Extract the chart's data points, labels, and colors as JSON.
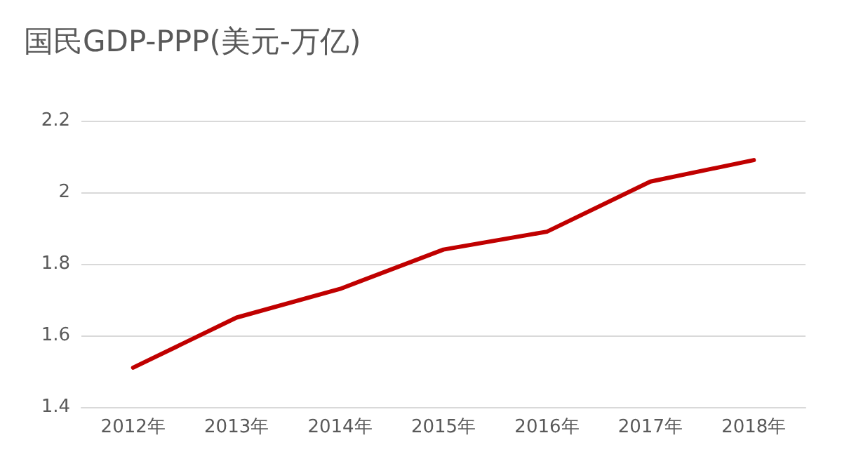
{
  "chart_data": {
    "type": "line",
    "title": "国民GDP-PPP(美元-万亿)",
    "categories": [
      "2012年",
      "2013年",
      "2014年",
      "2015年",
      "2016年",
      "2017年",
      "2018年"
    ],
    "series": [
      {
        "color": "#c00000",
        "values": [
          1.51,
          1.65,
          1.73,
          1.84,
          1.89,
          2.03,
          2.09
        ]
      }
    ],
    "ylim": [
      1.4,
      2.2
    ],
    "yticks": [
      1.4,
      1.6,
      1.8,
      2,
      2.2
    ],
    "grid": "y",
    "marker": "none",
    "line_style": "solid"
  }
}
